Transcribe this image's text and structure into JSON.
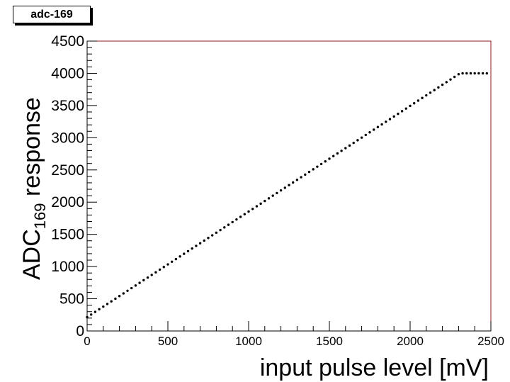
{
  "chart_data": {
    "type": "scatter",
    "title": "adc-169",
    "xlabel": "input pulse level [mV]",
    "ylabel_main": "ADC",
    "ylabel_sub": "169",
    "ylabel_tail": " response",
    "xlim": [
      0,
      2500
    ],
    "ylim": [
      0,
      4500
    ],
    "x_ticks": [
      "0",
      "500",
      "1000",
      "1500",
      "2000",
      "2500"
    ],
    "y_ticks": [
      "0",
      "500",
      "1000",
      "1500",
      "2000",
      "2500",
      "3000",
      "3500",
      "4000",
      "4500"
    ],
    "grid": false,
    "legend": "none",
    "marker_color": "#000000",
    "frame_color": "#8b1a1a",
    "series": [
      {
        "x": [
          0,
          25,
          50,
          75,
          100,
          125,
          150,
          175,
          200,
          225,
          250,
          275,
          300,
          325,
          350,
          375,
          400,
          425,
          450,
          475,
          500,
          525,
          550,
          575,
          600,
          625,
          650,
          675,
          700,
          725,
          750,
          775,
          800,
          825,
          850,
          875,
          900,
          925,
          950,
          975,
          1000,
          1025,
          1050,
          1075,
          1100,
          1125,
          1150,
          1175,
          1200,
          1225,
          1250,
          1275,
          1300,
          1325,
          1350,
          1375,
          1400,
          1425,
          1450,
          1475,
          1500,
          1525,
          1550,
          1575,
          1600,
          1625,
          1650,
          1675,
          1700,
          1725,
          1750,
          1775,
          1800,
          1825,
          1850,
          1875,
          1900,
          1925,
          1950,
          1975,
          2000,
          2025,
          2050,
          2075,
          2100,
          2125,
          2150,
          2175,
          2200,
          2225,
          2250,
          2275,
          2300,
          2325,
          2350,
          2375,
          2400,
          2425,
          2450,
          2475
        ],
        "y": [
          215,
          255,
          296,
          337,
          378,
          419,
          460,
          501,
          542,
          583,
          624,
          665,
          706,
          747,
          788,
          829,
          870,
          911,
          952,
          993,
          1034,
          1075,
          1116,
          1157,
          1198,
          1239,
          1280,
          1321,
          1362,
          1403,
          1444,
          1485,
          1526,
          1567,
          1608,
          1649,
          1690,
          1731,
          1772,
          1813,
          1854,
          1895,
          1936,
          1977,
          2018,
          2059,
          2100,
          2141,
          2182,
          2223,
          2264,
          2305,
          2346,
          2387,
          2428,
          2469,
          2510,
          2551,
          2592,
          2633,
          2674,
          2715,
          2756,
          2797,
          2838,
          2879,
          2920,
          2961,
          3002,
          3043,
          3084,
          3125,
          3166,
          3207,
          3248,
          3289,
          3330,
          3371,
          3412,
          3453,
          3494,
          3535,
          3576,
          3617,
          3658,
          3699,
          3740,
          3781,
          3822,
          3863,
          3904,
          3945,
          3986,
          4000,
          4000,
          4000,
          4000,
          4000,
          4000,
          4000
        ]
      }
    ]
  }
}
